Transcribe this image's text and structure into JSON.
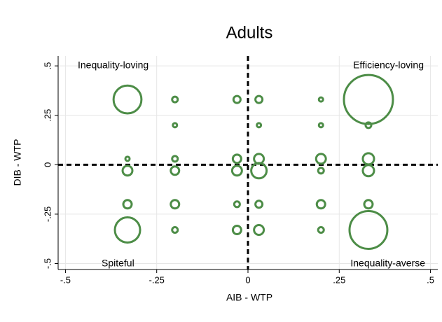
{
  "chart_data": {
    "type": "scatter",
    "title": "Adults",
    "x_label": "AIB - WTP",
    "y_label": "DIB - WTP",
    "annotations": [
      "Inequality-loving",
      "Efficiency-loving",
      "Spiteful",
      "Inequality-averse"
    ],
    "color": "#4d8d47",
    "x": [
      -0.33,
      -0.2,
      -0.03,
      0.03,
      0.2,
      0.33,
      -0.2,
      0.03,
      0.2,
      0.33,
      -0.33,
      -0.2,
      -0.03,
      0.03,
      0.2,
      0.33,
      -0.33,
      -0.2,
      -0.03,
      0.03,
      0.2,
      0.33,
      -0.33,
      -0.2,
      -0.03,
      0.03,
      0.2,
      0.33,
      -0.33,
      -0.2,
      -0.03,
      0.03,
      0.2,
      0.33
    ],
    "y": [
      0.33,
      0.33,
      0.33,
      0.33,
      0.33,
      0.33,
      0.2,
      0.2,
      0.2,
      0.2,
      0.03,
      0.03,
      0.03,
      0.03,
      0.03,
      0.03,
      -0.03,
      -0.03,
      -0.03,
      -0.03,
      -0.03,
      -0.03,
      -0.2,
      -0.2,
      -0.2,
      -0.2,
      -0.2,
      -0.2,
      -0.33,
      -0.33,
      -0.33,
      -0.33,
      -0.33,
      -0.33
    ],
    "sizes": [
      44,
      1.8,
      2.8,
      2.8,
      1,
      136,
      1,
      1,
      1,
      1.8,
      1,
      1.8,
      4,
      5.4,
      5.4,
      7.1,
      5.4,
      4,
      5.4,
      13.4,
      1.8,
      7.1,
      4,
      4,
      1.8,
      2.8,
      4,
      4,
      36,
      1.8,
      4,
      5.4,
      1.8,
      81
    ],
    "xlim": [
      -0.52,
      0.52
    ],
    "ylim": [
      -0.53,
      0.55
    ],
    "xticks": [
      {
        "value": -0.5,
        "label": "-.5"
      },
      {
        "value": -0.25,
        "label": "-.25"
      },
      0,
      {
        "value": 0.25,
        "label": ".25"
      },
      {
        "value": 0.5,
        "label": ".5"
      }
    ],
    "yticks": [
      {
        "value": -0.5,
        "label": "-.5"
      },
      {
        "value": -0.25,
        "label": "-.25"
      },
      0,
      {
        "value": 0.25,
        "label": ".25"
      },
      {
        "value": 0.5,
        "label": ".5"
      }
    ],
    "grid": true
  }
}
